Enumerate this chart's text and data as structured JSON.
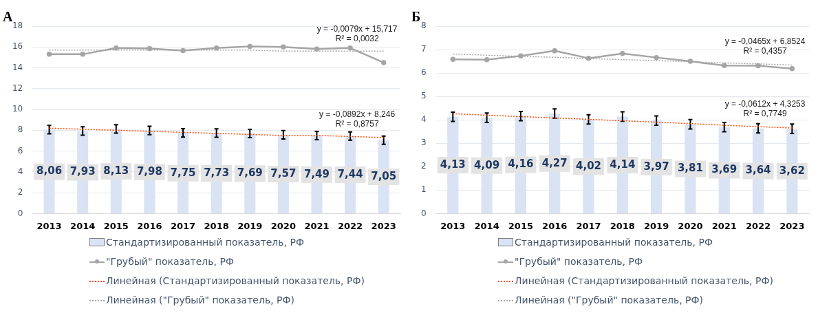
{
  "chart_data": [
    {
      "type": "bar",
      "title": "А",
      "categories": [
        "2013",
        "2014",
        "2015",
        "2016",
        "2017",
        "2018",
        "2019",
        "2020",
        "2021",
        "2022",
        "2023"
      ],
      "ylim": [
        0,
        18
      ],
      "yticks": [
        0,
        2,
        4,
        6,
        8,
        10,
        12,
        14,
        16,
        18
      ],
      "grid": "y",
      "legend": "bottom",
      "series": [
        {
          "name": "Стандартизированный показатель, РФ",
          "color": "#dae3f3",
          "values": [
            8.06,
            7.93,
            8.13,
            7.98,
            7.75,
            7.73,
            7.69,
            7.57,
            7.49,
            7.44,
            7.05
          ],
          "errors": [
            0.4,
            0.4,
            0.4,
            0.4,
            0.4,
            0.4,
            0.4,
            0.4,
            0.4,
            0.4,
            0.4
          ],
          "value_labels": [
            "8,06",
            "7,93",
            "8,13",
            "7,98",
            "7,75",
            "7,73",
            "7,69",
            "7,57",
            "7,49",
            "7,44",
            "7,05"
          ]
        },
        {
          "name": "\"Грубый\" показатель, РФ",
          "type": "line",
          "color": "#a5a5a5",
          "marker": "circle",
          "values": [
            15.3,
            15.3,
            15.9,
            15.85,
            15.65,
            15.9,
            16.05,
            16.0,
            15.8,
            15.9,
            14.5
          ]
        },
        {
          "name": "Линейная (Стандартизированный показатель, РФ)",
          "type": "line",
          "color": "#ff4500",
          "marker": "none",
          "line_style": "dotted",
          "values": [
            8.2,
            8.1,
            8.0,
            7.9,
            7.8,
            7.7,
            7.6,
            7.5,
            7.5,
            7.4,
            7.3
          ]
        },
        {
          "name": "Линейная (\"Грубый\" показатель, РФ)",
          "type": "line",
          "color": "#a5a5a5",
          "marker": "none",
          "line_style": "dotted",
          "values": [
            15.7,
            15.7,
            15.7,
            15.7,
            15.7,
            15.7,
            15.7,
            15.6,
            15.6,
            15.6,
            15.6
          ]
        }
      ],
      "annotations": [
        "y = -0,0079x + 15,717",
        "R² = 0,0032",
        "y = -0,0892x + 8,246",
        "R² = 0,8757"
      ]
    },
    {
      "type": "bar",
      "title": "Б",
      "categories": [
        "2013",
        "2014",
        "2015",
        "2016",
        "2017",
        "2018",
        "2019",
        "2020",
        "2021",
        "2022",
        "2023"
      ],
      "ylim": [
        0,
        8
      ],
      "yticks": [
        0,
        1,
        2,
        3,
        4,
        5,
        6,
        7,
        8
      ],
      "grid": "y",
      "legend": "bottom",
      "series": [
        {
          "name": "Стандартизированный показатель, РФ",
          "color": "#dae3f3",
          "values": [
            4.13,
            4.09,
            4.16,
            4.27,
            4.02,
            4.14,
            3.97,
            3.81,
            3.69,
            3.64,
            3.62
          ],
          "errors": [
            0.2,
            0.2,
            0.2,
            0.2,
            0.2,
            0.2,
            0.2,
            0.2,
            0.2,
            0.2,
            0.2
          ],
          "value_labels": [
            "4,13",
            "4,09",
            "4,16",
            "4,27",
            "4,02",
            "4,14",
            "3,97",
            "3,81",
            "3,69",
            "3,64",
            "3,62"
          ]
        },
        {
          "name": "\"Грубый\" показатель, РФ",
          "type": "line",
          "color": "#a5a5a5",
          "marker": "circle",
          "values": [
            6.58,
            6.57,
            6.73,
            6.95,
            6.63,
            6.83,
            6.66,
            6.5,
            6.32,
            6.31,
            6.19
          ]
        },
        {
          "name": "Линейная (Стандартизированный показатель, РФ)",
          "type": "line",
          "color": "#ff4500",
          "marker": "none",
          "line_style": "dotted",
          "values": [
            4.26,
            4.2,
            4.14,
            4.08,
            4.02,
            3.96,
            3.9,
            3.84,
            3.77,
            3.71,
            3.65
          ]
        },
        {
          "name": "Линейная (\"Грубый\" показатель, РФ)",
          "type": "line",
          "color": "#a5a5a5",
          "marker": "none",
          "line_style": "dotted",
          "values": [
            6.81,
            6.76,
            6.71,
            6.67,
            6.62,
            6.57,
            6.53,
            6.48,
            6.43,
            6.39,
            6.34
          ]
        }
      ],
      "annotations": [
        "y = -0,0465x + 6,8524",
        "R² = 0,4357",
        "y = -0,0612x + 4,3253",
        "R² = 0,7749"
      ]
    }
  ]
}
